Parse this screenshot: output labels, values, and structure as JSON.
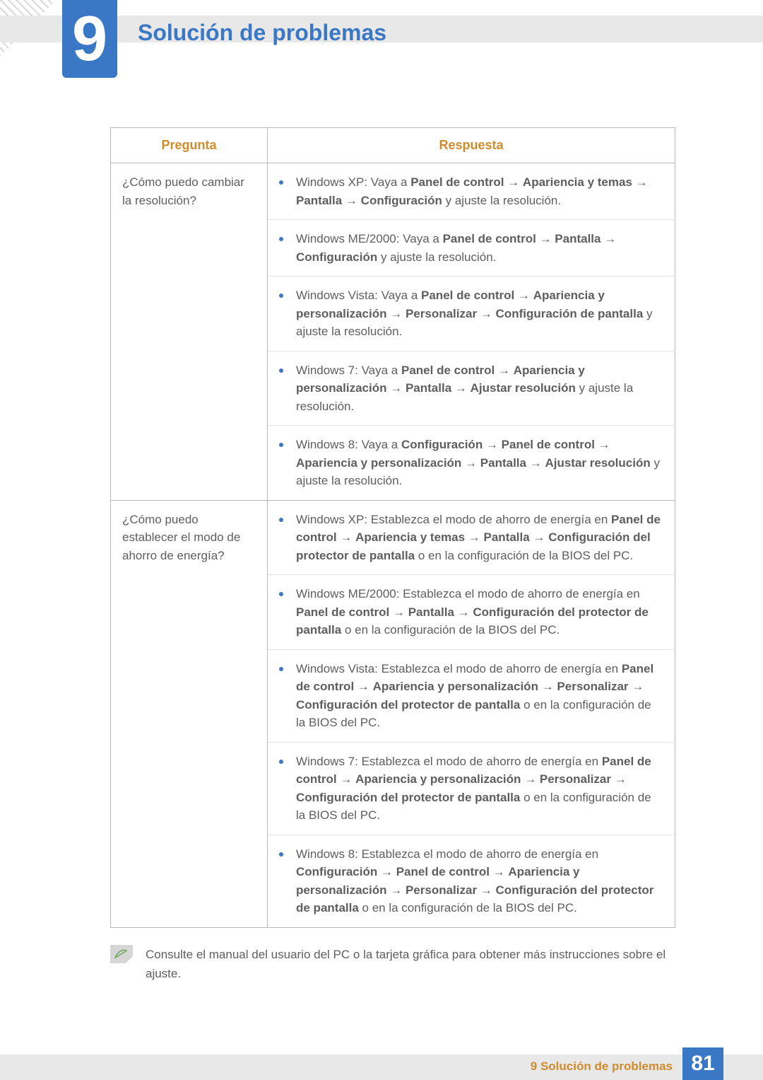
{
  "chapter": {
    "number": "9",
    "title": "Solución de problemas"
  },
  "table": {
    "headers": {
      "question": "Pregunta",
      "answer": "Respuesta"
    },
    "rows": [
      {
        "question": "¿Cómo puedo cambiar la resolución?",
        "answers": [
          "Windows XP: Vaya a <b>Panel de control</b> <span class='arrow'>→</span> <b>Apariencia y temas</b> <span class='arrow'>→</span> <b>Pantalla</b> <span class='arrow'>→</span> <b>Configuración</b> y ajuste la resolución.",
          "Windows ME/2000: Vaya a <b>Panel de control</b> <span class='arrow'>→</span> <b>Pantalla</b> <span class='arrow'>→</span> <b>Configuración</b> y ajuste la resolución.",
          "Windows Vista: Vaya a <b>Panel de control</b> <span class='arrow'>→</span> <b>Apariencia y personalización</b> <span class='arrow'>→</span> <b>Personalizar</b> <span class='arrow'>→</span> <b>Configuración de pantalla</b> y ajuste la resolución.",
          "Windows 7: Vaya a <b>Panel de control</b> <span class='arrow'>→</span> <b>Apariencia y personalización</b> <span class='arrow'>→</span> <b>Pantalla</b> <span class='arrow'>→</span> <b>Ajustar resolución</b> y ajuste la resolución.",
          "Windows 8: Vaya a <b>Configuración</b> <span class='arrow'>→</span> <b>Panel de control</b> <span class='arrow'>→</span> <b>Apariencia y personalización</b> <span class='arrow'>→</span> <b>Pantalla</b> <span class='arrow'>→</span> <b>Ajustar resolución</b> y ajuste la resolución."
        ]
      },
      {
        "question": "¿Cómo puedo establecer el modo de ahorro de energía?",
        "answers": [
          "Windows XP: Establezca el modo de ahorro de energía en <b>Panel de control</b> <span class='arrow'>→</span> <b>Apariencia y temas</b> <span class='arrow'>→</span> <b>Pantalla</b> <span class='arrow'>→</span> <b>Configuración del protector de pantalla</b> o en la configuración de la BIOS del PC.",
          "Windows ME/2000: Establezca el modo de ahorro de energía en <b>Panel de control</b> <span class='arrow'>→</span> <b>Pantalla</b> <span class='arrow'>→</span> <b>Configuración del protector de pantalla</b> o en la configuración de la BIOS del PC.",
          "Windows Vista: Establezca el modo de ahorro de energía en <b>Panel de control</b> <span class='arrow'>→</span> <b>Apariencia y personalización</b> <span class='arrow'>→</span> <b>Personalizar</b> <span class='arrow'>→</span> <b>Configuración del protector de pantalla</b> o en la configuración de la BIOS del PC.",
          "Windows 7: Establezca el modo de ahorro de energía en <b>Panel de control</b> <span class='arrow'>→</span> <b>Apariencia y personalización</b> <span class='arrow'>→</span> <b>Personalizar</b> <span class='arrow'>→</span> <b>Configuración del protector de pantalla</b> o en la configuración de la BIOS del PC.",
          "Windows 8: Establezca el modo de ahorro de energía en <b>Configuración</b> <span class='arrow'>→</span> <b>Panel de control</b> <span class='arrow'>→</span> <b>Apariencia y personalización</b> <span class='arrow'>→</span> <b>Personalizar</b> <span class='arrow'>→</span> <b>Configuración del protector de pantalla</b> o en la configuración de la BIOS del PC."
        ]
      }
    ]
  },
  "note": "Consulte el manual del usuario del PC o la tarjeta gráfica para obtener más instrucciones sobre el ajuste.",
  "footer": {
    "label": "9 Solución de problemas",
    "page": "81"
  },
  "colors": {
    "accent_blue": "#3a78c6",
    "accent_orange": "#d08b2c",
    "text": "#5e5e5e",
    "border": "#b8b8b8",
    "border_light": "#e4e4e4",
    "grey_band": "#e8e8e8"
  }
}
